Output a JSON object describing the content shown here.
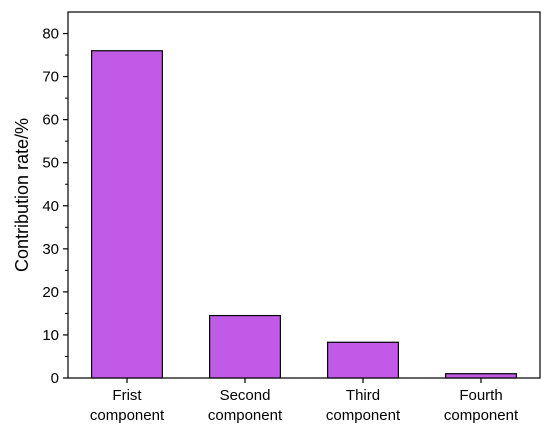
{
  "chart_data": {
    "type": "bar",
    "categories": [
      [
        "Frist",
        "component"
      ],
      [
        "Second",
        "component"
      ],
      [
        "Third",
        "component"
      ],
      [
        "Fourth",
        "component"
      ]
    ],
    "values": [
      76,
      14.5,
      8.3,
      1.0
    ],
    "xlabel": "",
    "ylabel": "Contribution rate/%",
    "ylim": [
      0,
      85
    ],
    "yticks": [
      0,
      10,
      20,
      30,
      40,
      50,
      60,
      70,
      80
    ],
    "grid": false,
    "legend": "none",
    "colors": {
      "bar_fill": "#c25ae8",
      "bar_stroke": "#000000",
      "axis": "#000000"
    }
  }
}
